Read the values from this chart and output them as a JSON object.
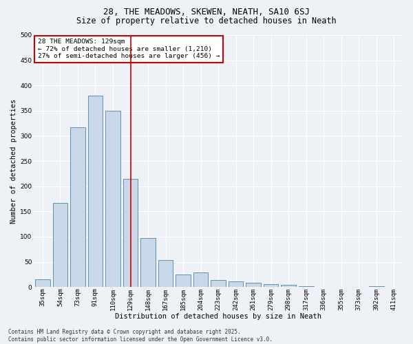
{
  "title_line1": "28, THE MEADOWS, SKEWEN, NEATH, SA10 6SJ",
  "title_line2": "Size of property relative to detached houses in Neath",
  "xlabel": "Distribution of detached houses by size in Neath",
  "ylabel": "Number of detached properties",
  "categories": [
    "35sqm",
    "54sqm",
    "73sqm",
    "91sqm",
    "110sqm",
    "129sqm",
    "148sqm",
    "167sqm",
    "185sqm",
    "204sqm",
    "223sqm",
    "242sqm",
    "261sqm",
    "279sqm",
    "298sqm",
    "317sqm",
    "336sqm",
    "355sqm",
    "373sqm",
    "392sqm",
    "411sqm"
  ],
  "values": [
    15,
    167,
    317,
    380,
    350,
    215,
    97,
    54,
    25,
    29,
    14,
    11,
    9,
    6,
    4,
    1,
    0,
    0,
    0,
    1,
    0
  ],
  "bar_color": "#c8d8e8",
  "bar_edge_color": "#6090b0",
  "highlight_index": 5,
  "highlight_line_color": "#cc0000",
  "ylim": [
    0,
    500
  ],
  "yticks": [
    0,
    50,
    100,
    150,
    200,
    250,
    300,
    350,
    400,
    450,
    500
  ],
  "annotation_text": "28 THE MEADOWS: 129sqm\n← 72% of detached houses are smaller (1,210)\n27% of semi-detached houses are larger (456) →",
  "annotation_box_color": "#ffffff",
  "annotation_box_edge_color": "#cc0000",
  "footer_line1": "Contains HM Land Registry data © Crown copyright and database right 2025.",
  "footer_line2": "Contains public sector information licensed under the Open Government Licence v3.0.",
  "bg_color": "#eef2f6",
  "grid_color": "#ffffff",
  "title_fontsize": 9,
  "subtitle_fontsize": 8.5,
  "tick_fontsize": 6.5,
  "ylabel_fontsize": 7.5,
  "xlabel_fontsize": 7.5,
  "annotation_fontsize": 6.8,
  "footer_fontsize": 5.5
}
